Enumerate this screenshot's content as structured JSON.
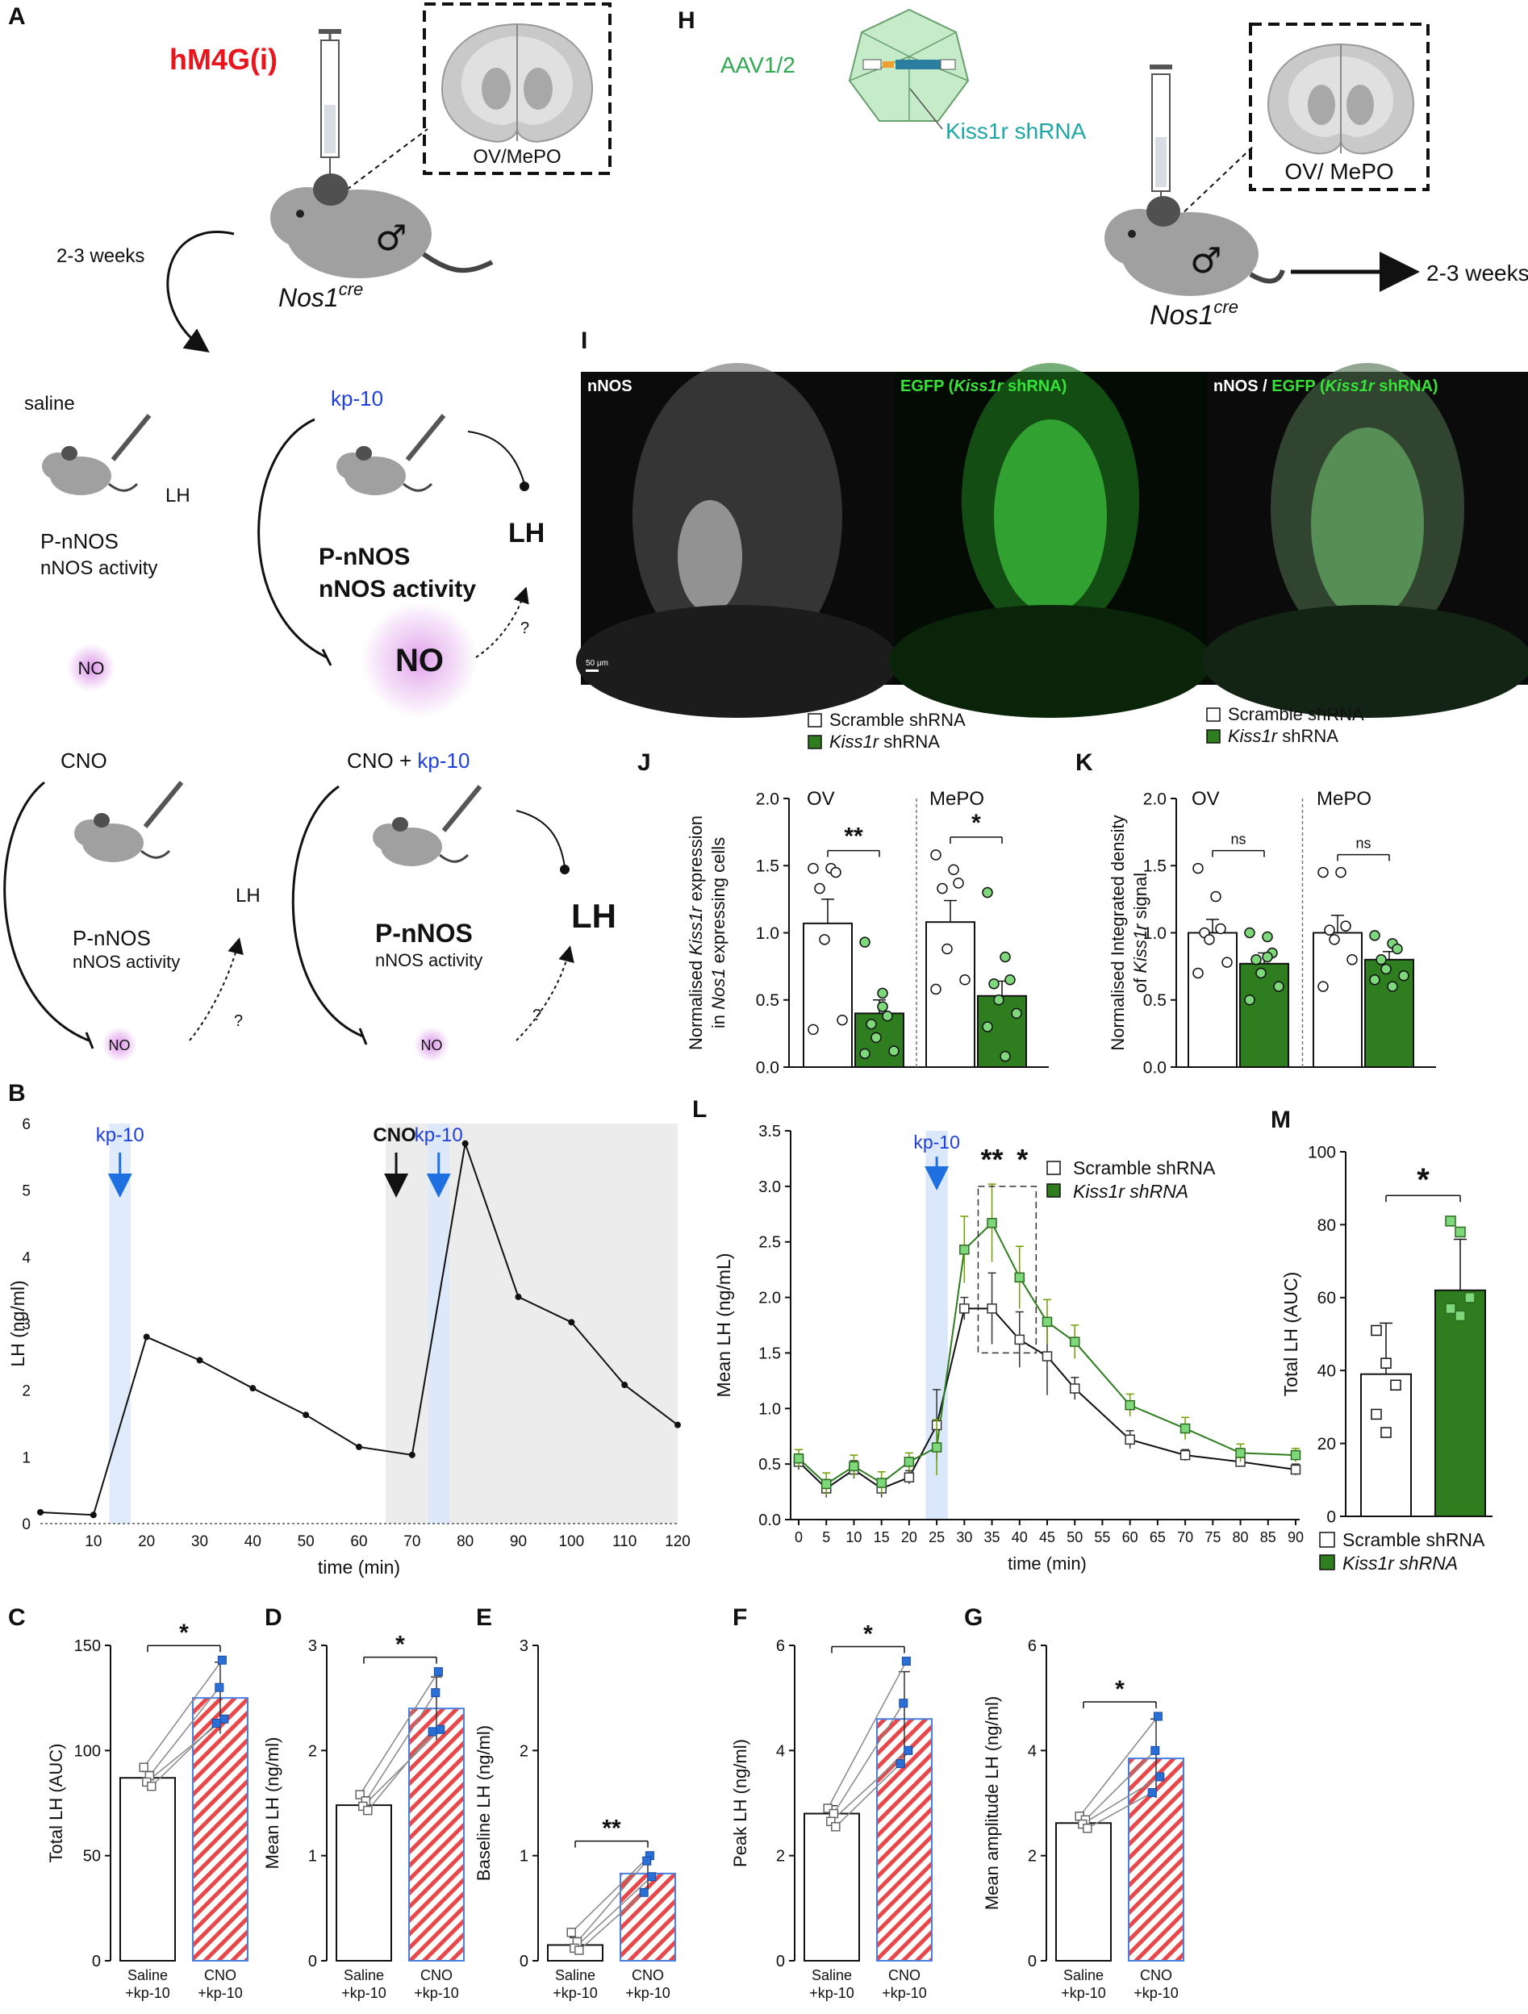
{
  "colors": {
    "red": "#e8161c",
    "blue": "#1e3fe0",
    "green": "#2e7d1e",
    "light_green": "#7ed77a",
    "teal": "#1fa7a7",
    "aav_green": "#2fa84f",
    "hatch_red": "#e8484a",
    "hatch_border": "#4a7fe0",
    "blue_marker": "#2a6fd6",
    "shade_blue": "#dbe8fb",
    "shade_gray": "#ececec",
    "no_glow": "#d98ae6"
  },
  "panels": {
    "A": "A",
    "B": "B",
    "C": "C",
    "D": "D",
    "E": "E",
    "F": "F",
    "G": "G",
    "H": "H",
    "I": "I",
    "J": "J",
    "K": "K",
    "L": "L",
    "M": "M"
  },
  "panel_a": {
    "drug": "hM4G(i)",
    "region": "OV/MePO",
    "duration": "2-3 weeks",
    "mouse": "Nos1",
    "mouse_sup": "cre",
    "saline": {
      "label": "saline",
      "lh": "LH",
      "pnnos": "P-nNOS",
      "activity": "nNOS activity",
      "no": "NO"
    },
    "kp10": {
      "label": "kp-10",
      "lh": "LH",
      "pnnos": "P-nNOS",
      "activity": "nNOS activity",
      "no": "NO",
      "q": "?"
    },
    "cno": {
      "label": "CNO",
      "lh": "LH",
      "pnnos": "P-nNOS",
      "activity": "nNOS activity",
      "no": "NO",
      "q": "?"
    },
    "cno_kp10": {
      "label_cno": "CNO +",
      "label_kp": "kp-10",
      "lh": "LH",
      "pnnos": "P-nNOS",
      "activity": "nNOS activity",
      "no": "NO",
      "q": "?"
    }
  },
  "panel_h": {
    "aav": "AAV1/2",
    "shrna": "Kiss1r shRNA",
    "region": "OV/ MePO",
    "mouse": "Nos1",
    "mouse_sup": "cre",
    "duration": "2-3 weeks"
  },
  "panel_i": {
    "labels": [
      "nNOS",
      "EGFP (",
      "Kiss1r",
      " shRNA)"
    ],
    "panel1": "nNOS",
    "panel2_pre": "EGFP (",
    "panel2_it": "Kiss1r",
    "panel2_post": " shRNA)",
    "panel3_pre": "nNOS / ",
    "panel3_g": "EGFP (",
    "panel3_it": "Kiss1r",
    "panel3_post": " shRNA)",
    "scale": "50 µm"
  },
  "chart_data": [
    {
      "id": "B",
      "type": "line",
      "xlabel": "time (min)",
      "ylabel": "LH (ng/ml)",
      "xlim": [
        0,
        120
      ],
      "ylim": [
        0,
        6
      ],
      "xticks": [
        10,
        20,
        30,
        40,
        50,
        60,
        70,
        80,
        90,
        100,
        110,
        120
      ],
      "yticks": [
        0,
        1,
        2,
        3,
        4,
        5,
        6
      ],
      "x": [
        0,
        10,
        20,
        30,
        40,
        50,
        60,
        70,
        80,
        90,
        100,
        110,
        120
      ],
      "y": [
        0.17,
        0.13,
        2.8,
        2.45,
        2.03,
        1.63,
        1.15,
        1.03,
        5.7,
        3.4,
        3.02,
        2.08,
        1.48
      ],
      "annotations": [
        {
          "text": "kp-10",
          "x": 15,
          "color": "blue"
        },
        {
          "text": "CNO",
          "x": 67,
          "color": "black"
        },
        {
          "text": "kp-10",
          "x": 75,
          "color": "blue"
        }
      ],
      "shaded": [
        {
          "from": 13,
          "to": 17,
          "kind": "blue"
        },
        {
          "from": 65,
          "to": 120,
          "kind": "gray"
        },
        {
          "from": 73,
          "to": 77,
          "kind": "blue"
        }
      ]
    },
    {
      "id": "C",
      "type": "bar",
      "ylabel": "Total LH (AUC)",
      "categories": [
        "Saline\n+kp-10",
        "CNO\n+kp-10"
      ],
      "cat_lines": [
        [
          "Saline",
          "+kp-10"
        ],
        [
          "CNO",
          "+kp-10"
        ]
      ],
      "values": [
        87,
        125
      ],
      "errors": [
        3,
        17
      ],
      "points": [
        [
          92,
          88,
          85,
          83
        ],
        [
          143,
          130,
          115,
          113
        ]
      ],
      "ylim": [
        0,
        150
      ],
      "yticks": [
        0,
        50,
        100,
        150
      ],
      "sig": "*"
    },
    {
      "id": "D",
      "type": "bar",
      "ylabel": "Mean LH (ng/ml)",
      "categories": [
        "Saline\n+kp-10",
        "CNO\n+kp-10"
      ],
      "cat_lines": [
        [
          "Saline",
          "+kp-10"
        ],
        [
          "CNO",
          "+kp-10"
        ]
      ],
      "values": [
        1.48,
        2.4
      ],
      "errors": [
        0.08,
        0.3
      ],
      "points": [
        [
          1.58,
          1.52,
          1.47,
          1.43
        ],
        [
          2.75,
          2.55,
          2.2,
          2.18
        ]
      ],
      "ylim": [
        0,
        3
      ],
      "yticks": [
        0,
        1,
        2,
        3
      ],
      "sig": "*"
    },
    {
      "id": "E",
      "type": "bar",
      "ylabel": "Baseline LH (ng/ml)",
      "categories": [
        "Saline\n+kp-10",
        "CNO\n+kp-10"
      ],
      "cat_lines": [
        [
          "Saline",
          "+kp-10"
        ],
        [
          "CNO",
          "+kp-10"
        ]
      ],
      "values": [
        0.15,
        0.83
      ],
      "errors": [
        0.07,
        0.15
      ],
      "points": [
        [
          0.27,
          0.18,
          0.12,
          0.1
        ],
        [
          1.0,
          0.95,
          0.8,
          0.65
        ]
      ],
      "ylim": [
        0,
        3
      ],
      "yticks": [
        0,
        1,
        2,
        3
      ],
      "sig": "**"
    },
    {
      "id": "F",
      "type": "bar",
      "ylabel": "Peak LH (ng/ml)",
      "categories": [
        "Saline\n+kp-10",
        "CNO\n+kp-10"
      ],
      "cat_lines": [
        [
          "Saline",
          "+kp-10"
        ],
        [
          "CNO",
          "+kp-10"
        ]
      ],
      "values": [
        2.8,
        4.6
      ],
      "errors": [
        0.15,
        0.9
      ],
      "points": [
        [
          2.9,
          2.8,
          2.65,
          2.55
        ],
        [
          5.7,
          4.9,
          4.0,
          3.75
        ]
      ],
      "ylim": [
        0,
        6
      ],
      "yticks": [
        0,
        2,
        4,
        6
      ],
      "sig": "*"
    },
    {
      "id": "G",
      "type": "bar",
      "ylabel": "Mean amplitude LH (ng/ml)",
      "categories": [
        "Saline\n+kp-10",
        "CNO\n+kp-10"
      ],
      "cat_lines": [
        [
          "Saline",
          "+kp-10"
        ],
        [
          "CNO",
          "+kp-10"
        ]
      ],
      "values": [
        2.62,
        3.85
      ],
      "errors": [
        0.12,
        0.75
      ],
      "points": [
        [
          2.75,
          2.68,
          2.6,
          2.52
        ],
        [
          4.65,
          4.0,
          3.5,
          3.2
        ]
      ],
      "ylim": [
        0,
        6
      ],
      "yticks": [
        0,
        2,
        4,
        6
      ],
      "sig": "*"
    },
    {
      "id": "J",
      "type": "bar",
      "ylabel_lines": [
        "Normalised Kiss1r expression",
        "in Nos1 expressing cells"
      ],
      "groups": [
        "OV",
        "MePO"
      ],
      "series": [
        {
          "name": "Scramble shRNA",
          "values": [
            1.07,
            1.08
          ],
          "errors": [
            0.18,
            0.16
          ],
          "points": [
            [
              1.48,
              1.48,
              1.45,
              1.33,
              0.95,
              0.35,
              0.28
            ],
            [
              1.58,
              1.47,
              1.37,
              1.33,
              0.88,
              0.65,
              0.58
            ]
          ]
        },
        {
          "name": "Kiss1r shRNA",
          "values": [
            0.4,
            0.53
          ],
          "errors": [
            0.1,
            0.11
          ],
          "points": [
            [
              0.93,
              0.45,
              0.38,
              0.32,
              0.22,
              0.12,
              0.1,
              0.55
            ],
            [
              1.3,
              0.82,
              0.65,
              0.62,
              0.5,
              0.4,
              0.3,
              0.08
            ]
          ]
        }
      ],
      "ylim": [
        0,
        2.0
      ],
      "yticks": [
        0.0,
        0.5,
        1.0,
        1.5,
        2.0
      ],
      "sig": [
        "**",
        "*"
      ],
      "legend": [
        "Scramble shRNA",
        "Kiss1r shRNA"
      ]
    },
    {
      "id": "K",
      "type": "bar",
      "ylabel_lines": [
        "Normalised Integrated density",
        "of Kiss1r signal"
      ],
      "groups": [
        "OV",
        "MePO"
      ],
      "series": [
        {
          "name": "Scramble shRNA",
          "values": [
            1.0,
            1.0
          ],
          "errors": [
            0.1,
            0.13
          ],
          "points": [
            [
              1.48,
              1.27,
              1.03,
              1.0,
              0.95,
              0.78,
              0.7
            ],
            [
              1.45,
              1.45,
              1.05,
              1.02,
              0.95,
              0.8,
              0.6
            ]
          ]
        },
        {
          "name": "Kiss1r shRNA",
          "values": [
            0.77,
            0.8
          ],
          "errors": [
            0.08,
            0.06
          ],
          "points": [
            [
              1.0,
              0.97,
              0.85,
              0.8,
              0.7,
              0.6,
              0.5,
              0.82
            ],
            [
              0.98,
              0.92,
              0.88,
              0.8,
              0.73,
              0.68,
              0.65,
              0.6
            ]
          ]
        }
      ],
      "ylim": [
        0,
        2.0
      ],
      "yticks": [
        0.0,
        0.5,
        1.0,
        1.5,
        2.0
      ],
      "sig": [
        "ns",
        "ns"
      ],
      "legend": [
        "Scramble shRNA",
        "Kiss1r shRNA"
      ]
    },
    {
      "id": "L",
      "type": "line",
      "xlabel": "time (min)",
      "ylabel": "Mean LH (ng/mL)",
      "xlim": [
        0,
        90
      ],
      "ylim": [
        0,
        3.5
      ],
      "xticks": [
        0,
        5,
        10,
        15,
        20,
        25,
        30,
        35,
        40,
        45,
        50,
        55,
        60,
        65,
        70,
        75,
        80,
        85,
        90
      ],
      "yticks": [
        0.0,
        0.5,
        1.0,
        1.5,
        2.0,
        2.5,
        3.0,
        3.5
      ],
      "x": [
        0,
        5,
        10,
        15,
        20,
        25,
        30,
        35,
        40,
        45,
        50,
        60,
        70,
        80,
        90
      ],
      "series": [
        {
          "name": "Scramble shRNA",
          "values": [
            0.52,
            0.28,
            0.45,
            0.28,
            0.38,
            0.85,
            1.9,
            1.9,
            1.62,
            1.47,
            1.18,
            0.72,
            0.58,
            0.52,
            0.45
          ],
          "errors": [
            0.07,
            0.08,
            0.08,
            0.08,
            0.06,
            0.32,
            0.1,
            0.32,
            0.25,
            0.35,
            0.1,
            0.08,
            0.05,
            0.04,
            0.05
          ]
        },
        {
          "name": "Kiss1r shRNA",
          "values": [
            0.55,
            0.32,
            0.48,
            0.33,
            0.52,
            0.65,
            2.43,
            2.67,
            2.18,
            1.78,
            1.6,
            1.03,
            0.82,
            0.6,
            0.58
          ],
          "errors": [
            0.08,
            0.1,
            0.1,
            0.1,
            0.08,
            0.25,
            0.3,
            0.35,
            0.28,
            0.2,
            0.15,
            0.1,
            0.1,
            0.08,
            0.06
          ]
        }
      ],
      "annotation": "kp-10",
      "sig": [
        "**",
        "*"
      ]
    },
    {
      "id": "M",
      "type": "bar",
      "ylabel": "Total LH (AUC)",
      "series": [
        {
          "name": "Scramble shRNA",
          "value": 39,
          "error": 14,
          "points": [
            51,
            42,
            36,
            28,
            23
          ]
        },
        {
          "name": "Kiss1r shRNA",
          "value": 62,
          "error": 14,
          "points": [
            81,
            78,
            60,
            57,
            55
          ]
        }
      ],
      "ylim": [
        0,
        100
      ],
      "yticks": [
        0,
        20,
        40,
        60,
        80,
        100
      ],
      "sig": "*",
      "legend": [
        "Scramble shRNA",
        "Kiss1r shRNA"
      ]
    }
  ]
}
